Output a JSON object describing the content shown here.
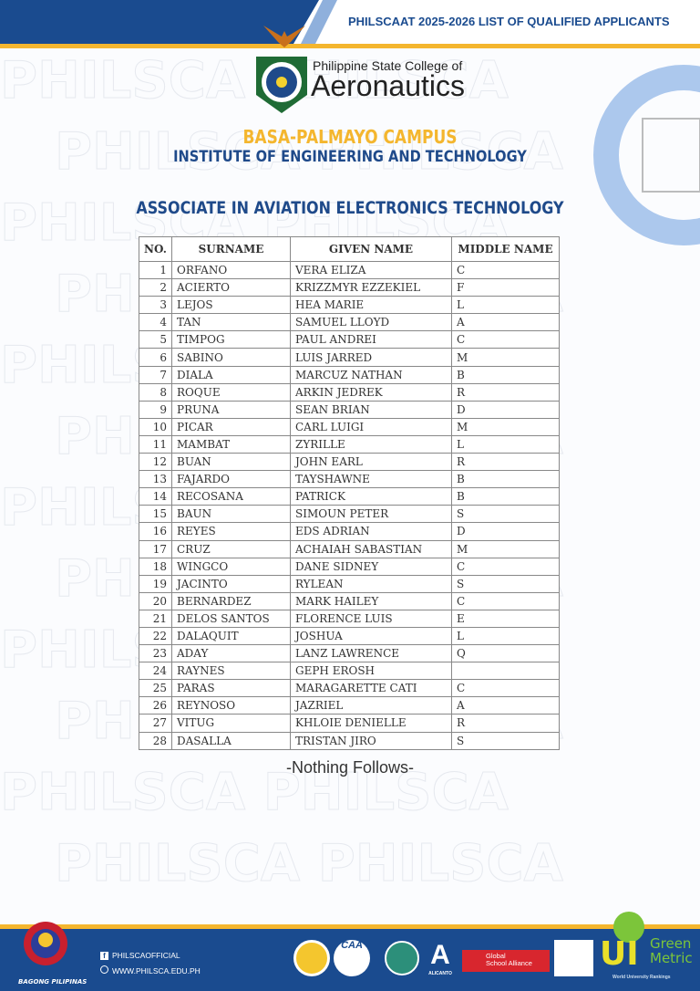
{
  "header": {
    "title": "PHILSCAAT  2025-2026 LIST OF QUALIFIED APPLICANTS"
  },
  "institution": {
    "line1": "Philippine State College of",
    "line2": "Aeronautics",
    "campus": "BASA-PALMAYO CAMPUS",
    "institute": "INSTITUTE OF ENGINEERING AND TECHNOLOGY"
  },
  "watermark": "PHILSCA",
  "program": "ASSOCIATE IN AVIATION ELECTRONICS TECHNOLOGY",
  "table": {
    "headers": [
      "NO.",
      "SURNAME",
      "GIVEN NAME",
      "MIDDLE NAME"
    ],
    "rows": [
      [
        "1",
        "ORFANO",
        "VERA ELIZA",
        "C"
      ],
      [
        "2",
        "ACIERTO",
        "KRIZZMYR EZZEKIEL",
        "F"
      ],
      [
        "3",
        "LEJOS",
        "HEA MARIE",
        "L"
      ],
      [
        "4",
        "TAN",
        "SAMUEL LLOYD",
        "A"
      ],
      [
        "5",
        "TIMPOG",
        "PAUL ANDREI",
        "C"
      ],
      [
        "6",
        "SABINO",
        "LUIS JARRED",
        "M"
      ],
      [
        "7",
        "DIALA",
        "MARCUZ NATHAN",
        "B"
      ],
      [
        "8",
        "ROQUE",
        "ARKIN JEDREK",
        "R"
      ],
      [
        "9",
        "PRUNA",
        "SEAN BRIAN",
        "D"
      ],
      [
        "10",
        "PICAR",
        "CARL LUIGI",
        "M"
      ],
      [
        "11",
        "MAMBAT",
        "ZYRILLE",
        "L"
      ],
      [
        "12",
        "BUAN",
        "JOHN EARL",
        "R"
      ],
      [
        "13",
        "FAJARDO",
        "TAYSHAWNE",
        "B"
      ],
      [
        "14",
        "RECOSANA",
        "PATRICK",
        "B"
      ],
      [
        "15",
        "BAUN",
        "SIMOUN PETER",
        "S"
      ],
      [
        "16",
        "REYES",
        "EDS ADRIAN",
        "D"
      ],
      [
        "17",
        "CRUZ",
        "ACHAIAH SABASTIAN",
        "M"
      ],
      [
        "18",
        "WINGCO",
        "DANE SIDNEY",
        "C"
      ],
      [
        "19",
        "JACINTO",
        "RYLEAN",
        "S"
      ],
      [
        "20",
        "BERNARDEZ",
        "MARK HAILEY",
        "C"
      ],
      [
        "21",
        "DELOS SANTOS",
        "FLORENCE LUIS",
        "E"
      ],
      [
        "22",
        "DALAQUIT",
        "JOSHUA",
        "L"
      ],
      [
        "23",
        "ADAY",
        "LANZ LAWRENCE",
        "Q"
      ],
      [
        "24",
        "RAYNES",
        "GEPH EROSH",
        ""
      ],
      [
        "25",
        "PARAS",
        "MARAGARETTE CATI",
        "C"
      ],
      [
        "26",
        "REYNOSO",
        "JAZRIEL",
        "A"
      ],
      [
        "27",
        "VITUG",
        "KHLOIE DENIELLE",
        "R"
      ],
      [
        "28",
        "DASALLA",
        "TRISTAN JIRO",
        "S"
      ]
    ]
  },
  "nothing_follows": "-Nothing Follows-",
  "footer": {
    "bagong": "BAGONG PILIPINAS",
    "facebook": "PHILSCAOFFICIAL",
    "website": "WWW.PHILSCA.EDU.PH",
    "caa": "CAA",
    "alicanto": "ALICANTO",
    "gsa1": "Global",
    "gsa2": "School Alliance",
    "green1": "Green",
    "green2": "Metric",
    "ui": "UI",
    "wur": "World University Rankings"
  },
  "colors": {
    "brand_blue": "#1a4b8f",
    "accent_gold": "#f4b62e"
  }
}
